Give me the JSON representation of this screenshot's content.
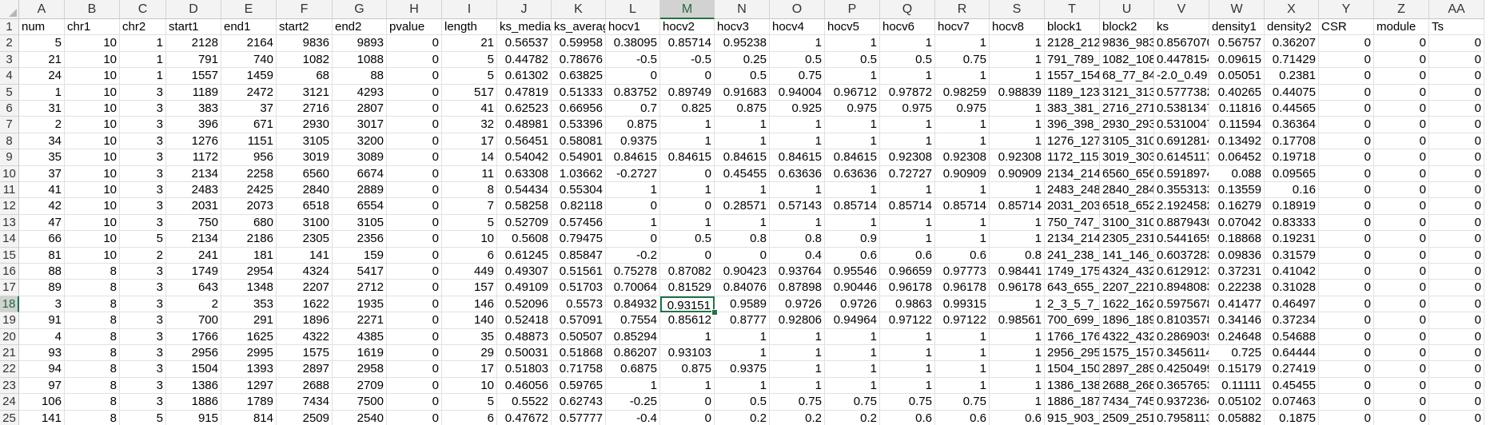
{
  "sheet": {
    "columns": [
      "A",
      "B",
      "C",
      "D",
      "E",
      "F",
      "G",
      "H",
      "I",
      "J",
      "K",
      "L",
      "M",
      "N",
      "O",
      "P",
      "Q",
      "R",
      "S",
      "T",
      "U",
      "V",
      "W",
      "X",
      "Y",
      "Z",
      "AA"
    ],
    "selected_column": "M",
    "selected_row": 18,
    "active_cell": "M18",
    "row_numbers": [
      1,
      2,
      3,
      4,
      5,
      6,
      7,
      8,
      9,
      10,
      11,
      12,
      13,
      14,
      15,
      16,
      17,
      18,
      19,
      20,
      21,
      22,
      23,
      24,
      25,
      26
    ],
    "rows": [
      [
        "num",
        "chr1",
        "chr2",
        "start1",
        "end1",
        "start2",
        "end2",
        "pvalue",
        "length",
        "ks_media",
        "ks_averag",
        "hocv1",
        "hocv2",
        "hocv3",
        "hocv4",
        "hocv5",
        "hocv6",
        "hocv7",
        "hocv8",
        "block1",
        "block2",
        "ks",
        "density1",
        "density2",
        "CSR",
        "module",
        "Ts"
      ],
      [
        "5",
        "10",
        "1",
        "2128",
        "2164",
        "9836",
        "9893",
        "0",
        "21",
        "0.56537",
        "0.59958",
        "0.38095",
        "0.85714",
        "0.95238",
        "1",
        "1",
        "1",
        "1",
        "1",
        "2128_212!",
        "9836_983!",
        "0.8567070",
        "0.56757",
        "0.36207",
        "0",
        "0",
        "0"
      ],
      [
        "21",
        "10",
        "1",
        "791",
        "740",
        "1082",
        "1088",
        "0",
        "5",
        "0.44782",
        "0.78676",
        "-0.5",
        "-0.5",
        "0.25",
        "0.5",
        "0.5",
        "0.5",
        "0.75",
        "1",
        "791_789_1",
        "1082_108:",
        "0.4478154",
        "0.09615",
        "0.71429",
        "0",
        "0",
        "0"
      ],
      [
        "24",
        "10",
        "1",
        "1557",
        "1459",
        "68",
        "88",
        "0",
        "5",
        "0.61302",
        "0.63825",
        "0",
        "0",
        "0.5",
        "0.75",
        "1",
        "1",
        "1",
        "1",
        "1557_154!",
        "68_77_84_",
        "-2.0_0.49",
        "0.05051",
        "0.2381",
        "0",
        "0",
        "0"
      ],
      [
        "1",
        "10",
        "3",
        "1189",
        "2472",
        "3121",
        "4293",
        "0",
        "517",
        "0.47819",
        "0.51333",
        "0.83752",
        "0.89749",
        "0.91683",
        "0.94004",
        "0.96712",
        "0.97872",
        "0.98259",
        "0.98839",
        "1189_123:",
        "3121_313(",
        "0.5777382",
        "0.40265",
        "0.44075",
        "0",
        "0",
        "0"
      ],
      [
        "31",
        "10",
        "3",
        "383",
        "37",
        "2716",
        "2807",
        "0",
        "41",
        "0.62523",
        "0.66956",
        "0.7",
        "0.825",
        "0.875",
        "0.925",
        "0.975",
        "0.975",
        "0.975",
        "1",
        "383_381_3",
        "2716_271!",
        "0.5381347",
        "0.11816",
        "0.44565",
        "0",
        "0",
        "0"
      ],
      [
        "2",
        "10",
        "3",
        "396",
        "671",
        "2930",
        "3017",
        "0",
        "32",
        "0.48981",
        "0.53396",
        "0.875",
        "1",
        "1",
        "1",
        "1",
        "1",
        "1",
        "1",
        "396_398_4",
        "2930_293:",
        "0.5310047",
        "0.11594",
        "0.36364",
        "0",
        "0",
        "0"
      ],
      [
        "34",
        "10",
        "3",
        "1276",
        "1151",
        "3105",
        "3200",
        "0",
        "17",
        "0.56451",
        "0.58081",
        "0.9375",
        "1",
        "1",
        "1",
        "1",
        "1",
        "1",
        "1",
        "1276_127:",
        "3105_310(",
        "0.6912814",
        "0.13492",
        "0.17708",
        "0",
        "0",
        "0"
      ],
      [
        "35",
        "10",
        "3",
        "1172",
        "956",
        "3019",
        "3089",
        "0",
        "14",
        "0.54042",
        "0.54901",
        "0.84615",
        "0.84615",
        "0.84615",
        "0.84615",
        "0.84615",
        "0.92308",
        "0.92308",
        "0.92308",
        "1172_115:",
        "3019_303(",
        "0.6145117",
        "0.06452",
        "0.19718",
        "0",
        "0",
        "0"
      ],
      [
        "37",
        "10",
        "3",
        "2134",
        "2258",
        "6560",
        "6674",
        "0",
        "11",
        "0.63308",
        "1.03662",
        "-0.2727",
        "0",
        "0.45455",
        "0.63636",
        "0.63636",
        "0.72727",
        "0.90909",
        "0.90909",
        "2134_214(",
        "6560_656(",
        "0.5918974",
        "0.088",
        "0.09565",
        "0",
        "0",
        "0"
      ],
      [
        "41",
        "10",
        "3",
        "2483",
        "2425",
        "2840",
        "2889",
        "0",
        "8",
        "0.54434",
        "0.55304",
        "1",
        "1",
        "1",
        "1",
        "1",
        "1",
        "1",
        "1",
        "2483_248:",
        "2840_284(",
        "0.3553133",
        "0.13559",
        "0.16",
        "0",
        "0",
        "0"
      ],
      [
        "42",
        "10",
        "3",
        "2031",
        "2073",
        "6518",
        "6554",
        "0",
        "7",
        "0.58258",
        "0.82118",
        "0",
        "0",
        "0.28571",
        "0.57143",
        "0.85714",
        "0.85714",
        "0.85714",
        "0.85714",
        "2031_203(",
        "6518_652(",
        "2.1924582",
        "0.16279",
        "0.18919",
        "0",
        "0",
        "0"
      ],
      [
        "47",
        "10",
        "3",
        "750",
        "680",
        "3100",
        "3105",
        "0",
        "5",
        "0.52709",
        "0.57456",
        "1",
        "1",
        "1",
        "1",
        "1",
        "1",
        "1",
        "1",
        "750_747_1",
        "3100_310(",
        "0.8879430",
        "0.07042",
        "0.83333",
        "0",
        "0",
        "0"
      ],
      [
        "66",
        "10",
        "5",
        "2134",
        "2186",
        "2305",
        "2356",
        "0",
        "10",
        "0.5608",
        "0.79475",
        "0",
        "0.5",
        "0.8",
        "0.8",
        "0.9",
        "1",
        "1",
        "1",
        "2134_214(",
        "2305_231(",
        "0.5441659",
        "0.18868",
        "0.19231",
        "0",
        "0",
        "0"
      ],
      [
        "81",
        "10",
        "2",
        "241",
        "181",
        "141",
        "159",
        "0",
        "6",
        "0.61245",
        "0.85847",
        "-0.2",
        "0",
        "0",
        "0.4",
        "0.6",
        "0.6",
        "0.6",
        "0.8",
        "241_238_2",
        "141_146_1",
        "0.6037283",
        "0.09836",
        "0.31579",
        "0",
        "0",
        "0"
      ],
      [
        "88",
        "8",
        "3",
        "1749",
        "2954",
        "4324",
        "5417",
        "0",
        "449",
        "0.49307",
        "0.51561",
        "0.75278",
        "0.87082",
        "0.90423",
        "0.93764",
        "0.95546",
        "0.96659",
        "0.97773",
        "0.98441",
        "1749_175(",
        "4324_432(",
        "0.6129123",
        "0.37231",
        "0.41042",
        "0",
        "0",
        "0"
      ],
      [
        "89",
        "8",
        "3",
        "643",
        "1348",
        "2207",
        "2712",
        "0",
        "157",
        "0.49109",
        "0.51703",
        "0.70064",
        "0.81529",
        "0.84076",
        "0.87898",
        "0.90446",
        "0.96178",
        "0.96178",
        "0.96178",
        "643_655_(",
        "2207_221(",
        "0.8948083",
        "0.22238",
        "0.31028",
        "0",
        "0",
        "0"
      ],
      [
        "3",
        "8",
        "3",
        "2",
        "353",
        "1622",
        "1935",
        "0",
        "146",
        "0.52096",
        "0.5573",
        "0.84932",
        "0.93151",
        "0.9589",
        "0.9726",
        "0.9726",
        "0.9863",
        "0.99315",
        "1",
        "2_3_5_7_8",
        "1622_162(",
        "0.5975678",
        "0.41477",
        "0.46497",
        "0",
        "0",
        "0"
      ],
      [
        "91",
        "8",
        "3",
        "700",
        "291",
        "1896",
        "2271",
        "0",
        "140",
        "0.52418",
        "0.57091",
        "0.7554",
        "0.85612",
        "0.8777",
        "0.92806",
        "0.94964",
        "0.97122",
        "0.97122",
        "0.98561",
        "700_699_(",
        "1896_189:",
        "0.8103578",
        "0.34146",
        "0.37234",
        "0",
        "0",
        "0"
      ],
      [
        "4",
        "8",
        "3",
        "1766",
        "1625",
        "4322",
        "4385",
        "0",
        "35",
        "0.48873",
        "0.50507",
        "0.85294",
        "1",
        "1",
        "1",
        "1",
        "1",
        "1",
        "1",
        "1766_176(",
        "4322_432(",
        "0.2869039",
        "0.24648",
        "0.54688",
        "0",
        "0",
        "0"
      ],
      [
        "93",
        "8",
        "3",
        "2956",
        "2995",
        "1575",
        "1619",
        "0",
        "29",
        "0.50031",
        "0.51868",
        "0.86207",
        "0.93103",
        "1",
        "1",
        "1",
        "1",
        "1",
        "1",
        "2956_295:",
        "1575_157(",
        "0.3456114",
        "0.725",
        "0.64444",
        "0",
        "0",
        "0"
      ],
      [
        "94",
        "8",
        "3",
        "1504",
        "1393",
        "2897",
        "2958",
        "0",
        "17",
        "0.51803",
        "0.71758",
        "0.6875",
        "0.875",
        "0.9375",
        "1",
        "1",
        "1",
        "1",
        "1",
        "1504_150(",
        "2897_289(",
        "0.4250499",
        "0.15179",
        "0.27419",
        "0",
        "0",
        "0"
      ],
      [
        "97",
        "8",
        "3",
        "1386",
        "1297",
        "2688",
        "2709",
        "0",
        "10",
        "0.46056",
        "0.59765",
        "1",
        "1",
        "1",
        "1",
        "1",
        "1",
        "1",
        "1",
        "1386_138!",
        "2688_268(",
        "0.3657653",
        "0.11111",
        "0.45455",
        "0",
        "0",
        "0"
      ],
      [
        "106",
        "8",
        "3",
        "1886",
        "1789",
        "7434",
        "7500",
        "0",
        "5",
        "0.5522",
        "0.62743",
        "-0.25",
        "0",
        "0.5",
        "0.75",
        "0.75",
        "0.75",
        "0.75",
        "1",
        "1886_187(",
        "7434_745(",
        "0.9372364",
        "0.05102",
        "0.07463",
        "0",
        "0",
        "0"
      ],
      [
        "141",
        "8",
        "5",
        "915",
        "814",
        "2509",
        "2540",
        "0",
        "6",
        "0.47672",
        "0.57777",
        "-0.4",
        "0",
        "0.2",
        "0.2",
        "0.2",
        "0.6",
        "0.6",
        "0.6",
        "915_903_(",
        "2509_251(",
        "0.7958113",
        "0.05882",
        "0.1875",
        "0",
        "0",
        "0"
      ]
    ]
  }
}
